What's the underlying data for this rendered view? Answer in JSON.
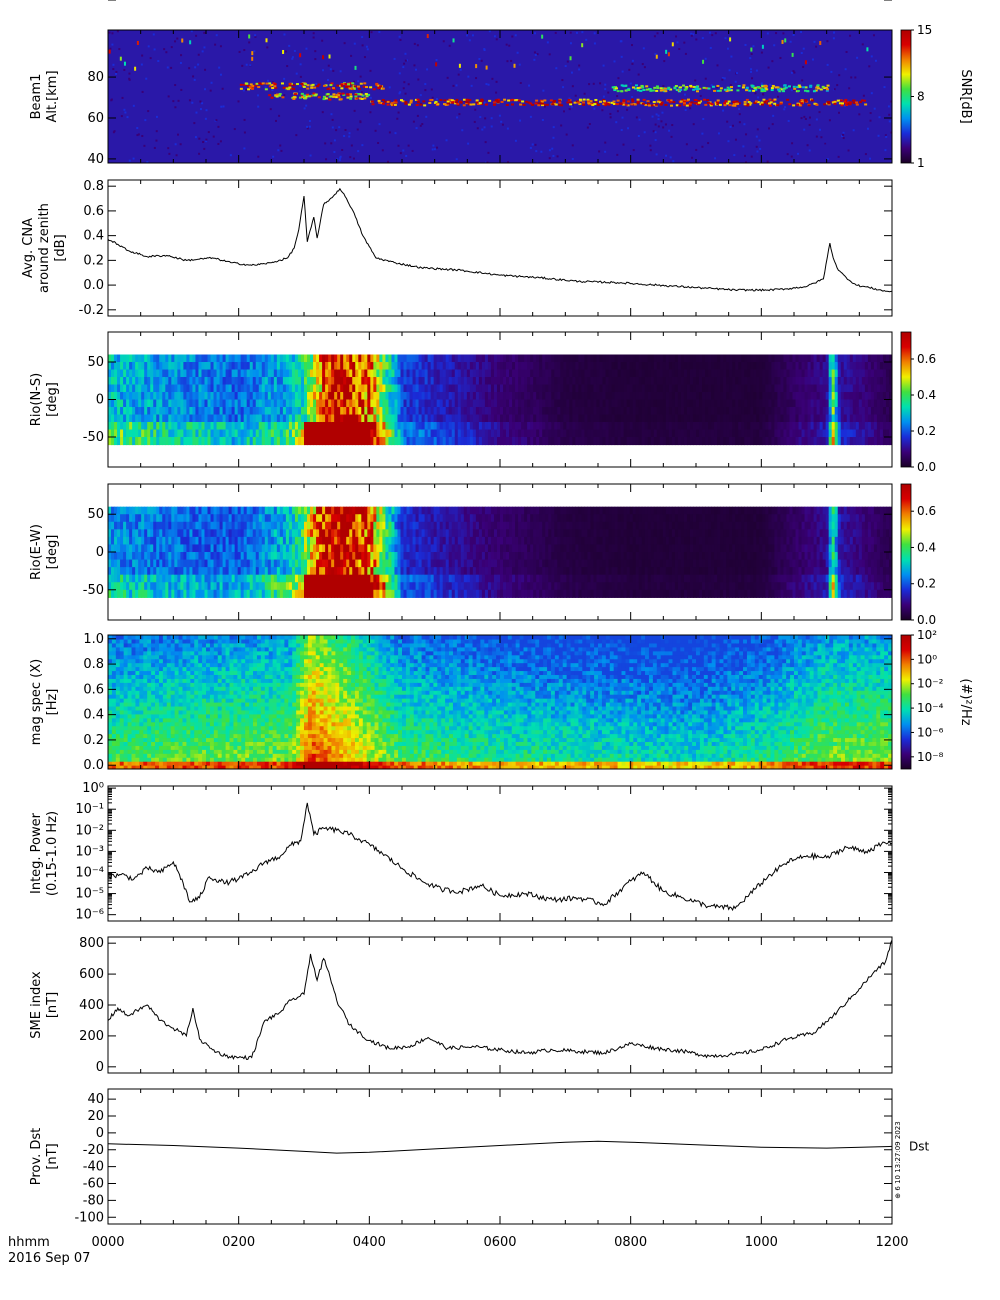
{
  "footer": {
    "time_label": "hhmm",
    "date_label": "2016 Sep 07",
    "x_ticks": [
      "0000",
      "0200",
      "0400",
      "0600",
      "0800",
      "1000",
      "1200"
    ],
    "stamp": "⊕ 6 10 13:27:09 2023"
  },
  "colors": {
    "background": "#ffffff",
    "line": "#000000",
    "colormap": [
      "#1a0026",
      "#3a0078",
      "#1a2cd8",
      "#0090f0",
      "#00e0b0",
      "#40e040",
      "#f0f000",
      "#f08000",
      "#d80000",
      "#b00000"
    ]
  },
  "chart_data": [
    {
      "id": "beam1",
      "type": "heatmap",
      "ylabel_lines": [
        "Beam1",
        "Alt.[km]"
      ],
      "yticks": [
        "40",
        "60",
        "80",
        "100"
      ],
      "ylim": [
        38,
        103
      ],
      "colorbar": {
        "label": "SNR[dB]",
        "ticks": [
          "1",
          "8",
          "15"
        ],
        "range": [
          1,
          15
        ]
      },
      "features": [
        {
          "t_start": 200,
          "t_end": 420,
          "alt": 76,
          "snr": 12
        },
        {
          "t_start": 240,
          "t_end": 400,
          "alt": 71,
          "snr": 11
        },
        {
          "t_start": 400,
          "t_end": 1160,
          "alt": 68,
          "snr": 13
        },
        {
          "t_start": 770,
          "t_end": 1100,
          "alt": 75,
          "snr": 9
        }
      ]
    },
    {
      "id": "cna",
      "type": "line",
      "ylabel_lines": [
        "Avg. CNA",
        "around zenith",
        "[dB]"
      ],
      "yticks": [
        "-0.2",
        "0.0",
        "0.2",
        "0.4",
        "0.6",
        "0.8"
      ],
      "ylim": [
        -0.25,
        0.85
      ],
      "x": [
        0,
        15,
        30,
        60,
        90,
        120,
        140,
        160,
        190,
        220,
        250,
        275,
        285,
        292,
        300,
        305,
        315,
        320,
        330,
        345,
        355,
        365,
        375,
        390,
        410,
        440,
        480,
        540,
        600,
        660,
        720,
        780,
        840,
        900,
        960,
        1010,
        1040,
        1070,
        1095,
        1105,
        1110,
        1118,
        1130,
        1145,
        1165,
        1190,
        1200
      ],
      "y": [
        0.37,
        0.33,
        0.28,
        0.23,
        0.24,
        0.2,
        0.21,
        0.22,
        0.18,
        0.16,
        0.18,
        0.22,
        0.3,
        0.45,
        0.72,
        0.35,
        0.55,
        0.38,
        0.65,
        0.72,
        0.78,
        0.7,
        0.6,
        0.4,
        0.22,
        0.18,
        0.14,
        0.12,
        0.08,
        0.06,
        0.03,
        0.02,
        0.0,
        -0.02,
        -0.04,
        -0.04,
        -0.03,
        -0.01,
        0.05,
        0.34,
        0.22,
        0.12,
        0.06,
        0.0,
        -0.02,
        -0.05,
        -0.05
      ]
    },
    {
      "id": "rio_ns",
      "type": "heatmap",
      "ylabel_lines": [
        "Rio(N-S)",
        "[deg]"
      ],
      "yticks": [
        "-50",
        "0",
        "50"
      ],
      "ylim": [
        -90,
        90
      ],
      "data_rows": [
        -60,
        60
      ],
      "colorbar": {
        "ticks": [
          "0.0",
          "0.2",
          "0.4",
          "0.6"
        ],
        "range": [
          0,
          0.75
        ]
      },
      "profile_t": [
        0,
        100,
        200,
        280,
        300,
        330,
        350,
        400,
        450,
        600,
        700,
        800,
        1000,
        1100,
        1110,
        1120,
        1200
      ],
      "profile_v": [
        0.3,
        0.25,
        0.22,
        0.28,
        0.35,
        0.6,
        0.75,
        0.6,
        0.18,
        0.08,
        0.03,
        0.02,
        0.02,
        0.1,
        0.4,
        0.12,
        0.04
      ]
    },
    {
      "id": "rio_ew",
      "type": "heatmap",
      "ylabel_lines": [
        "Rio(E-W)",
        "[deg]"
      ],
      "yticks": [
        "-50",
        "0",
        "50"
      ],
      "ylim": [
        -90,
        90
      ],
      "data_rows": [
        -60,
        60
      ],
      "colorbar": {
        "ticks": [
          "0.0",
          "0.2",
          "0.4",
          "0.6"
        ],
        "range": [
          0,
          0.75
        ]
      },
      "profile_t": [
        0,
        100,
        200,
        280,
        300,
        330,
        350,
        400,
        450,
        600,
        700,
        800,
        1000,
        1100,
        1110,
        1120,
        1200
      ],
      "profile_v": [
        0.25,
        0.22,
        0.2,
        0.3,
        0.4,
        0.7,
        0.75,
        0.62,
        0.16,
        0.07,
        0.03,
        0.02,
        0.02,
        0.1,
        0.38,
        0.12,
        0.04
      ]
    },
    {
      "id": "mag_spec",
      "type": "heatmap",
      "ylabel_lines": [
        "mag spec (X)",
        "[Hz]"
      ],
      "yticks": [
        "0.0",
        "0.2",
        "0.4",
        "0.6",
        "0.8",
        "1.0"
      ],
      "ylim": [
        -0.03,
        1.03
      ],
      "colorbar": {
        "label": "(#)²/Hz",
        "ticks": [
          "10⁻⁸",
          "10⁻⁶",
          "10⁻⁴",
          "10⁻²",
          "10⁰",
          "10²"
        ],
        "range": [
          -9,
          2
        ]
      }
    },
    {
      "id": "integ_power",
      "type": "line",
      "ylabel_lines": [
        "Integ. Power",
        "(0.15-1.0 Hz)"
      ],
      "yticks": [
        "10⁻⁶",
        "10⁻⁵",
        "10⁻⁴",
        "10⁻³",
        "10⁻²",
        "10⁻¹",
        "10⁰"
      ],
      "log_scale": true,
      "ylim_log10": [
        -6.3,
        0.1
      ],
      "x": [
        0,
        20,
        40,
        60,
        80,
        100,
        115,
        125,
        140,
        155,
        180,
        200,
        220,
        240,
        260,
        280,
        295,
        305,
        315,
        330,
        350,
        370,
        390,
        420,
        450,
        480,
        510,
        540,
        570,
        600,
        640,
        680,
        720,
        760,
        800,
        820,
        850,
        880,
        920,
        960,
        990,
        1010,
        1040,
        1070,
        1100,
        1130,
        1160,
        1190,
        1200
      ],
      "y_log10": [
        -4.2,
        -4.1,
        -4.3,
        -3.8,
        -4.0,
        -3.5,
        -4.5,
        -5.4,
        -5.2,
        -4.2,
        -4.5,
        -4.3,
        -4.0,
        -3.5,
        -3.3,
        -2.7,
        -2.5,
        -0.7,
        -2.2,
        -1.9,
        -2.0,
        -2.2,
        -2.5,
        -3.1,
        -3.8,
        -4.4,
        -4.8,
        -4.9,
        -4.6,
        -5.1,
        -5.0,
        -5.3,
        -5.2,
        -5.5,
        -4.4,
        -4.0,
        -4.9,
        -5.2,
        -5.6,
        -5.7,
        -4.8,
        -4.2,
        -3.5,
        -3.2,
        -3.3,
        -2.8,
        -3.0,
        -2.6,
        -2.6
      ]
    },
    {
      "id": "sme_index",
      "type": "line",
      "ylabel_lines": [
        "SME index",
        "[nT]"
      ],
      "yticks": [
        "0",
        "200",
        "400",
        "600",
        "800"
      ],
      "ylim": [
        -40,
        840
      ],
      "x": [
        0,
        15,
        30,
        60,
        80,
        100,
        120,
        130,
        140,
        160,
        180,
        200,
        220,
        240,
        260,
        280,
        300,
        310,
        320,
        330,
        340,
        350,
        370,
        400,
        430,
        460,
        490,
        520,
        560,
        600,
        640,
        680,
        720,
        760,
        800,
        840,
        880,
        920,
        960,
        1000,
        1040,
        1080,
        1110,
        1140,
        1170,
        1190,
        1200
      ],
      "y": [
        300,
        380,
        330,
        400,
        300,
        250,
        200,
        380,
        180,
        110,
        70,
        60,
        60,
        300,
        340,
        430,
        470,
        730,
        560,
        700,
        580,
        430,
        270,
        170,
        120,
        130,
        190,
        120,
        130,
        110,
        90,
        110,
        100,
        90,
        150,
        120,
        100,
        70,
        80,
        110,
        180,
        220,
        330,
        460,
        600,
        680,
        820
      ]
    },
    {
      "id": "prov_dst",
      "type": "line",
      "ylabel_lines": [
        "Prov. Dst",
        "[nT]"
      ],
      "yticks": [
        "-100",
        "-80",
        "-60",
        "-40",
        "-20",
        "0",
        "20",
        "40"
      ],
      "ylim": [
        -108,
        52
      ],
      "series_label": "Dst",
      "x": [
        0,
        100,
        200,
        300,
        350,
        400,
        500,
        600,
        700,
        750,
        800,
        900,
        1000,
        1100,
        1200
      ],
      "y": [
        -13,
        -15,
        -18,
        -22,
        -24,
        -23,
        -19,
        -15,
        -11,
        -10,
        -11,
        -14,
        -17,
        -18,
        -16
      ]
    }
  ]
}
